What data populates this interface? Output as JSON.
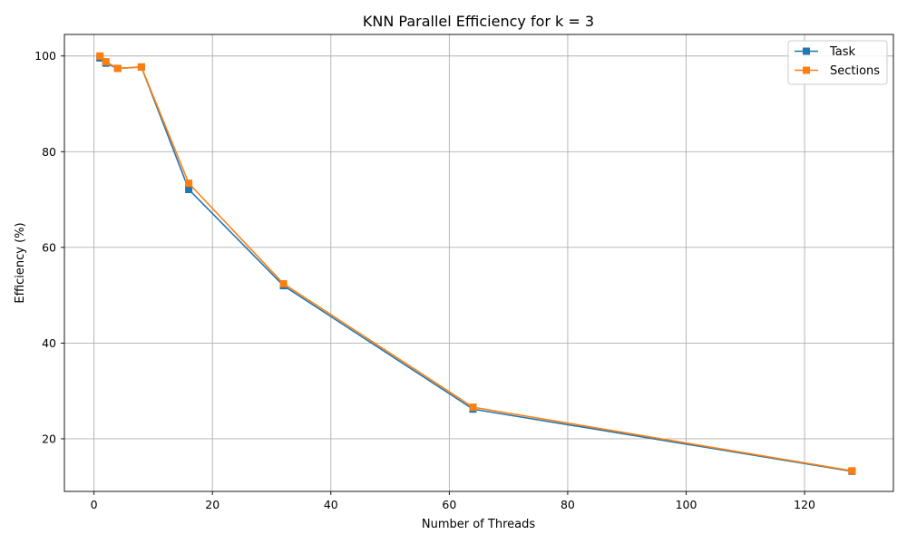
{
  "chart_data": {
    "type": "line",
    "title": "KNN Parallel Efficiency for k = 3",
    "xlabel": "Number of Threads",
    "ylabel": "Efficiency (%)",
    "xlim": [
      -5,
      135
    ],
    "ylim": [
      9,
      104.5
    ],
    "xticks": [
      0,
      20,
      40,
      60,
      80,
      100,
      120
    ],
    "yticks": [
      20,
      40,
      60,
      80,
      100
    ],
    "grid": true,
    "legend_position": "top-right",
    "series": [
      {
        "name": "Task",
        "color": "#1f77b4",
        "marker": "square",
        "x": [
          1,
          2,
          4,
          8,
          16,
          32,
          64,
          128
        ],
        "y": [
          99.6,
          98.5,
          97.4,
          97.7,
          72.1,
          52.0,
          26.2,
          13.2
        ]
      },
      {
        "name": "Sections",
        "color": "#ff7f0e",
        "marker": "square",
        "x": [
          1,
          2,
          4,
          8,
          16,
          32,
          64,
          128
        ],
        "y": [
          100.0,
          98.8,
          97.4,
          97.7,
          73.4,
          52.4,
          26.6,
          13.3
        ]
      }
    ]
  }
}
